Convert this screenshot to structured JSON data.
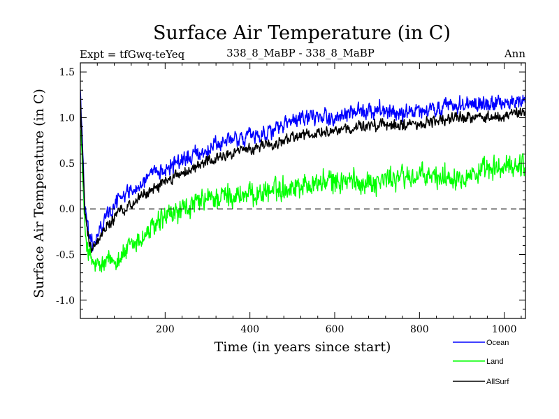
{
  "chart_data": {
    "type": "line",
    "title": "Surface Air Temperature (in C)",
    "subtitle_left": "Expt = tfGwq-teYeq",
    "subtitle_center": "338_8_MaBP - 338_8_MaBP",
    "subtitle_right": "Ann",
    "xlabel": "Time (in years since start)",
    "ylabel": "Surface Air Temperature (in C)",
    "xlim": [
      0,
      1050
    ],
    "ylim": [
      -1.2,
      1.6
    ],
    "x_ticks": [
      200,
      400,
      600,
      800,
      1000
    ],
    "x_tick_labels": [
      "200",
      "400",
      "600",
      "800",
      "1000"
    ],
    "y_ticks": [
      -1.0,
      -0.5,
      0.0,
      0.5,
      1.0,
      1.5
    ],
    "y_tick_labels": [
      "-1.0",
      "-0.5",
      "0.0",
      "0.5",
      "1.0",
      "1.5"
    ],
    "zero_line": 0.0,
    "x_anchor": [
      0,
      10,
      20,
      30,
      40,
      60,
      80,
      100,
      150,
      200,
      250,
      300,
      350,
      400,
      450,
      500,
      550,
      600,
      650,
      700,
      750,
      800,
      850,
      900,
      950,
      1000,
      1050
    ],
    "series": [
      {
        "name": "Ocean",
        "color": "#0000ff",
        "mean": [
          1.3,
          0.1,
          -0.3,
          -0.4,
          -0.3,
          -0.1,
          0.05,
          0.15,
          0.3,
          0.45,
          0.55,
          0.65,
          0.75,
          0.8,
          0.85,
          0.95,
          1.0,
          1.0,
          1.05,
          1.1,
          1.05,
          1.05,
          1.1,
          1.15,
          1.15,
          1.15,
          1.2
        ],
        "noise": 0.11
      },
      {
        "name": "Land",
        "color": "#00ff00",
        "mean": [
          1.0,
          -0.2,
          -0.5,
          -0.6,
          -0.65,
          -0.6,
          -0.55,
          -0.5,
          -0.3,
          -0.1,
          0.0,
          0.1,
          0.15,
          0.15,
          0.2,
          0.25,
          0.28,
          0.3,
          0.3,
          0.3,
          0.35,
          0.35,
          0.35,
          0.38,
          0.4,
          0.45,
          0.5
        ],
        "noise": 0.17
      },
      {
        "name": "AllSurf",
        "color": "#000000",
        "mean": [
          1.2,
          0.0,
          -0.35,
          -0.45,
          -0.35,
          -0.2,
          -0.1,
          0.0,
          0.15,
          0.3,
          0.42,
          0.52,
          0.6,
          0.65,
          0.7,
          0.78,
          0.82,
          0.85,
          0.88,
          0.92,
          0.92,
          0.93,
          0.97,
          1.0,
          1.0,
          1.02,
          1.05
        ],
        "noise": 0.08
      }
    ],
    "legend_position": "bottom-right"
  }
}
